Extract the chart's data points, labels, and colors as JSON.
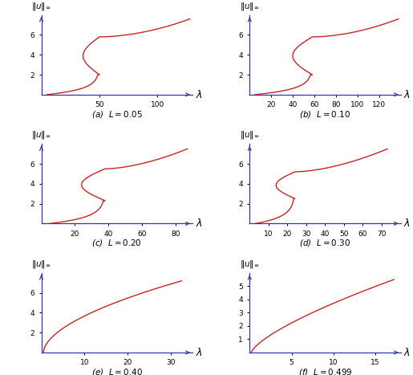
{
  "panels": [
    {
      "label": "(a)",
      "L_str": "0.05",
      "xlim": [
        0,
        130
      ],
      "xticks": [
        50,
        100
      ],
      "ylim": [
        0,
        8
      ],
      "yticks": [
        2,
        4,
        6
      ]
    },
    {
      "label": "(b)",
      "L_str": "0.10",
      "xlim": [
        0,
        140
      ],
      "xticks": [
        20,
        40,
        60,
        80,
        100,
        120
      ],
      "ylim": [
        0,
        8
      ],
      "yticks": [
        2,
        4,
        6
      ]
    },
    {
      "label": "(c)",
      "L_str": "0.20",
      "xlim": [
        0,
        90
      ],
      "xticks": [
        20,
        40,
        60,
        80
      ],
      "ylim": [
        0,
        8
      ],
      "yticks": [
        2,
        4,
        6
      ]
    },
    {
      "label": "(d)",
      "L_str": "0.30",
      "xlim": [
        0,
        80
      ],
      "xticks": [
        10,
        20,
        30,
        40,
        50,
        60,
        70
      ],
      "ylim": [
        0,
        8
      ],
      "yticks": [
        2,
        4,
        6
      ]
    },
    {
      "label": "(e)",
      "L_str": "0.40",
      "xlim": [
        0,
        35
      ],
      "xticks": [
        10,
        20,
        30
      ],
      "ylim": [
        0,
        8
      ],
      "yticks": [
        2,
        4,
        6
      ]
    },
    {
      "label": "(f)",
      "L_str": "0.499",
      "xlim": [
        0,
        18
      ],
      "xticks": [
        5,
        10,
        15
      ],
      "ylim": [
        0,
        6
      ],
      "yticks": [
        1,
        2,
        3,
        4,
        5
      ]
    }
  ],
  "curve_color": "#cc2222",
  "axis_color": "#3333bb",
  "line_width": 1.0,
  "tick_fontsize": 6.5,
  "label_fontsize": 7.5,
  "ylabel_fontsize": 7.5,
  "xlabel_fontsize": 9
}
